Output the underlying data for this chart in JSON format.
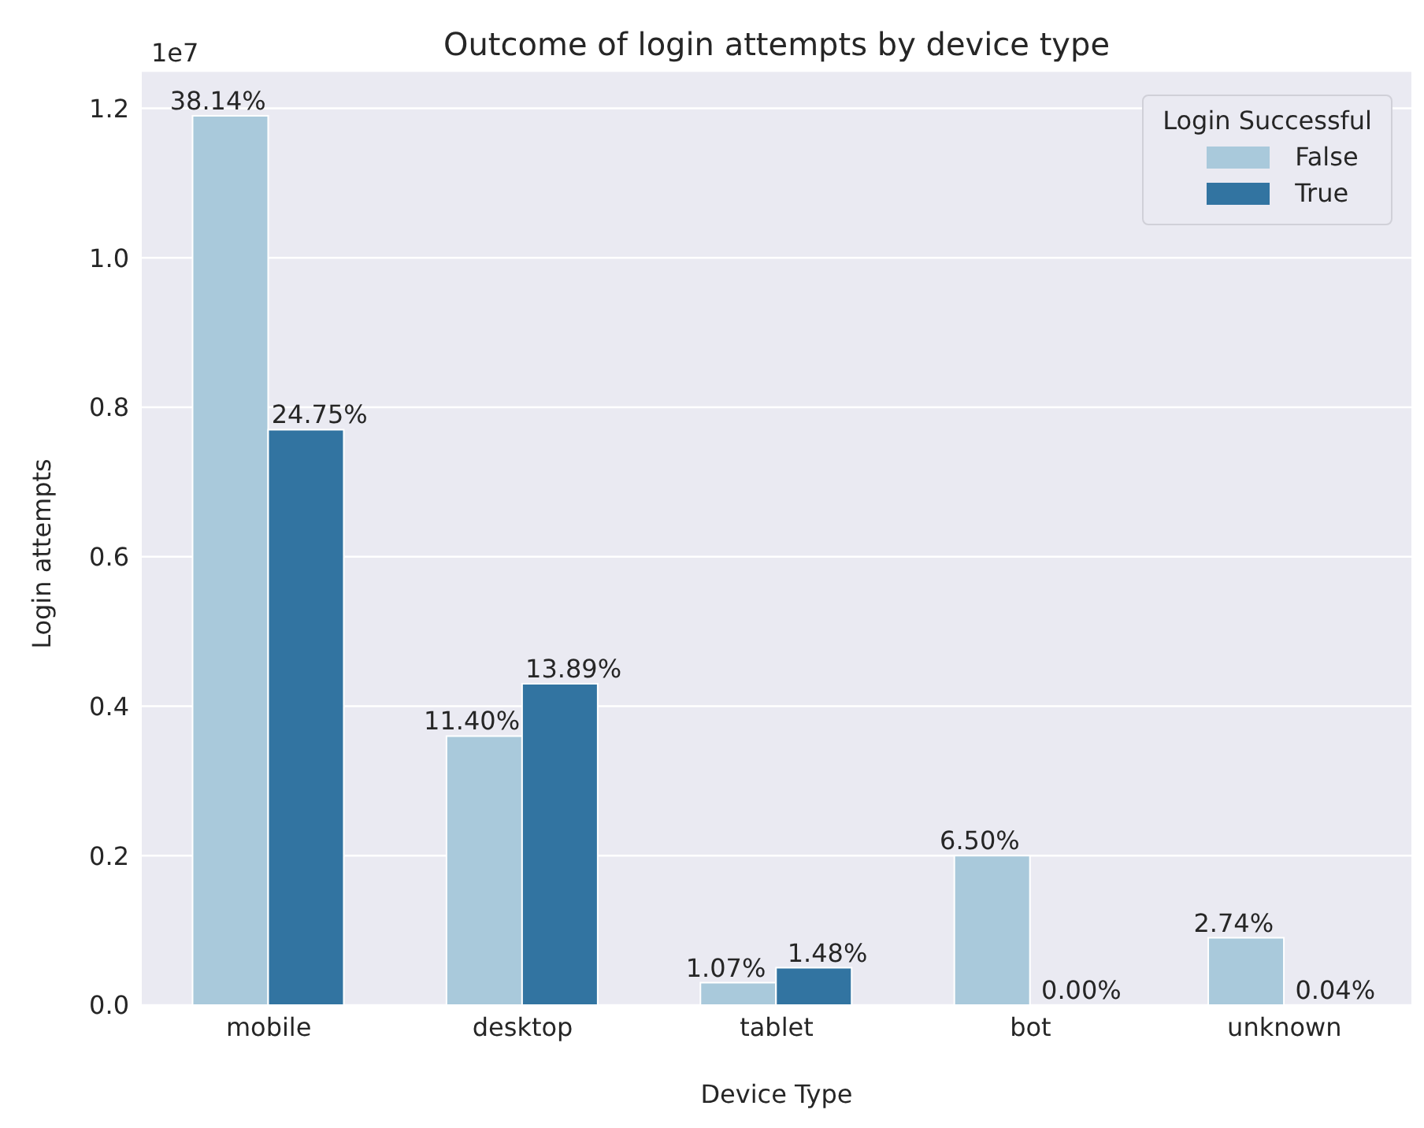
{
  "chart_data": {
    "type": "bar",
    "title": "Outcome of login attempts by device type",
    "xlabel": "Device Type",
    "ylabel": "Login attempts",
    "legend_title": "Login Successful",
    "annotations": [
      "1e7",
      {
        "text": "38.14%",
        "x": "mobile",
        "y": 1.19
      },
      {
        "text": "24.75%",
        "x": "mobile",
        "y": 0.77
      },
      {
        "text": "11.40%",
        "x": "desktop",
        "y": 0.36
      },
      {
        "text": "13.89%",
        "x": "desktop",
        "y": 0.43
      },
      {
        "text": "1.07%",
        "x": "tablet",
        "y": 0.03
      },
      {
        "text": "1.48%",
        "x": "tablet",
        "y": 0.05
      },
      {
        "text": "6.50%",
        "x": "bot",
        "y": 0.2
      },
      {
        "text": "0.00%",
        "x": "bot",
        "y": 0
      },
      {
        "text": "2.74%",
        "x": "unknown",
        "y": 0.09
      },
      {
        "text": "0.04%",
        "x": "unknown",
        "y": 0
      }
    ],
    "categories": [
      "mobile",
      "desktop",
      "tablet",
      "bot",
      "unknown"
    ],
    "series": [
      {
        "name": "False",
        "color": "#a9c9db",
        "values": [
          1.19,
          0.36,
          0.03,
          0.2,
          0.09
        ]
      },
      {
        "name": "True",
        "color": "#3274a1",
        "values": [
          0.77,
          0.43,
          0.05,
          0,
          0
        ]
      }
    ],
    "ylim": [
      0,
      1.25
    ],
    "yticks": [
      {
        "value": 0,
        "label": "0.0"
      },
      {
        "value": 0.2,
        "label": "0.2"
      },
      {
        "value": 0.4,
        "label": "0.4"
      },
      {
        "value": 0.6,
        "label": "0.6"
      },
      {
        "value": 0.8,
        "label": "0.8"
      },
      {
        "value": 1,
        "label": "1.0"
      },
      {
        "value": 1.2,
        "label": "1.2"
      }
    ],
    "grid": "y",
    "legend": "top right"
  }
}
